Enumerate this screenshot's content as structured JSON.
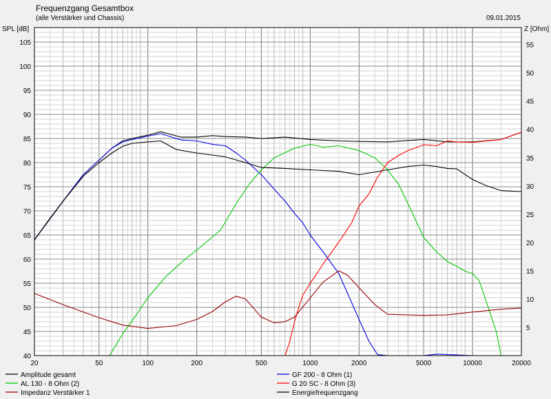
{
  "header": {
    "title": "Frequenzgang Gesamtbox",
    "subtitle": "(alle Verstärker und Chassis)",
    "date": "09.01.2015",
    "ylabel_left": "SPL [dB]",
    "ylabel_right": "Z [Ohm]"
  },
  "chart_data": {
    "type": "line",
    "title": "Frequenzgang Gesamtbox",
    "xlabel": "",
    "ylabel": "SPL [dB]",
    "ylabel_right": "Z [Ohm]",
    "x_scale": "log",
    "xlim": [
      20,
      20000
    ],
    "ylim": [
      40,
      108
    ],
    "ylim_right": [
      0,
      58
    ],
    "grid": true,
    "x_ticks": [
      20,
      50,
      100,
      200,
      500,
      1000,
      2000,
      5000,
      10000,
      20000
    ],
    "y_ticks": [
      40,
      45,
      50,
      55,
      60,
      65,
      70,
      75,
      80,
      85,
      90,
      95,
      100,
      105
    ],
    "y_ticks_right": [
      5,
      10,
      15,
      20,
      25,
      30,
      35,
      40,
      45,
      50,
      55
    ],
    "legend_position": "bottom",
    "series": [
      {
        "name": "Amplitude gesamt",
        "color": "#000000",
        "axis": "left",
        "x": [
          20,
          25,
          30,
          40,
          50,
          60,
          70,
          80,
          100,
          120,
          140,
          160,
          200,
          250,
          300,
          400,
          500,
          700,
          1000,
          1500,
          2000,
          3000,
          5000,
          7000,
          10000,
          15000,
          20000
        ],
        "y": [
          64,
          68.5,
          72,
          77.5,
          80.5,
          83,
          84.5,
          85,
          85.7,
          86.4,
          85.8,
          85.3,
          85.3,
          85.6,
          85.4,
          85.3,
          85.0,
          85.3,
          84.8,
          84.5,
          84.4,
          84.3,
          84.8,
          84.3,
          84.3,
          84.8,
          86.3
        ]
      },
      {
        "name": "GF 200 - 8 Ohm (1)",
        "color": "#0000e0",
        "axis": "left",
        "x": [
          20,
          30,
          40,
          50,
          60,
          70,
          80,
          100,
          120,
          140,
          160,
          200,
          250,
          300,
          350,
          400,
          500,
          600,
          700,
          800,
          900,
          1000,
          1200,
          1500,
          1800,
          2000,
          2300,
          2600,
          3000,
          5000,
          6000,
          10000,
          20000
        ],
        "y": [
          64,
          72,
          77.5,
          80.5,
          83,
          84.3,
          84.8,
          85.5,
          86.0,
          85.3,
          84.7,
          84.5,
          83.8,
          83.5,
          82.0,
          80.5,
          77.5,
          74.5,
          72.0,
          69.5,
          67.5,
          65.0,
          61.5,
          57.0,
          51.0,
          47.5,
          43.0,
          40.2,
          40.0,
          40.0,
          40.3,
          40.0,
          40.0
        ]
      },
      {
        "name": "AL 130 - 8 Ohm (2)",
        "color": "#00c800",
        "axis": "left",
        "x": [
          20,
          58,
          70,
          85,
          100,
          130,
          170,
          220,
          280,
          350,
          420,
          500,
          600,
          800,
          1000,
          1200,
          1500,
          2000,
          2500,
          3000,
          3500,
          4000,
          5000,
          6000,
          7000,
          8000,
          9000,
          10000,
          11000,
          12500,
          14000,
          15000,
          20000
        ],
        "y": [
          40,
          40,
          44.5,
          48.5,
          52,
          56.5,
          60,
          63,
          66,
          71.5,
          75.5,
          78.5,
          81,
          83,
          83.8,
          83.2,
          83.5,
          82.5,
          81,
          78.5,
          75.5,
          71.5,
          64.5,
          61.5,
          59.5,
          58.5,
          57.5,
          57,
          55.5,
          50,
          45,
          40,
          40
        ]
      },
      {
        "name": "G 20 SC - 8 Ohm (3)",
        "color": "#ff0000",
        "axis": "left",
        "x": [
          20,
          700,
          750,
          800,
          850,
          900,
          1000,
          1100,
          1200,
          1500,
          1800,
          2000,
          2300,
          2600,
          3000,
          3500,
          4000,
          5000,
          6000,
          7000,
          8000,
          10000,
          15000,
          20000
        ],
        "y": [
          40,
          40,
          43,
          47,
          50,
          52.5,
          55,
          57,
          59,
          63.5,
          67.5,
          71,
          73.5,
          77,
          80,
          81.5,
          82.5,
          83.7,
          83.5,
          84.5,
          84.3,
          84.2,
          84.8,
          86.3
        ]
      },
      {
        "name": "Impedanz Verstärker 1",
        "color": "#990000",
        "axis": "right",
        "x": [
          20,
          30,
          50,
          70,
          100,
          150,
          200,
          250,
          300,
          350,
          400,
          500,
          600,
          700,
          800,
          1000,
          1200,
          1500,
          1700,
          2000,
          2500,
          3000,
          5000,
          7000,
          10000,
          15000,
          20000
        ],
        "y": [
          11,
          9,
          6.7,
          5.4,
          4.8,
          5.3,
          6.4,
          7.8,
          9.5,
          10.5,
          10.0,
          6.8,
          5.8,
          6.0,
          6.8,
          10.2,
          13.0,
          15.0,
          14.2,
          12.0,
          9.0,
          7.3,
          7.1,
          7.2,
          7.7,
          8.2,
          8.4
        ]
      },
      {
        "name": "Energiefrequenzgang",
        "color": "#000000",
        "axis": "left",
        "x": [
          20,
          30,
          40,
          50,
          60,
          70,
          80,
          100,
          120,
          150,
          200,
          300,
          400,
          500,
          700,
          1000,
          1500,
          2000,
          3000,
          4000,
          5000,
          6000,
          7000,
          8000,
          10000,
          12000,
          15000,
          20000
        ],
        "y": [
          64,
          72,
          77.2,
          80,
          82,
          83.4,
          84.0,
          84.3,
          84.5,
          82.7,
          82.0,
          81.2,
          80.0,
          79.0,
          78.8,
          78.5,
          78.2,
          77.5,
          78.5,
          79.2,
          79.5,
          79.2,
          78.8,
          78.7,
          76.5,
          75.3,
          74.2,
          74.0
        ]
      }
    ]
  }
}
